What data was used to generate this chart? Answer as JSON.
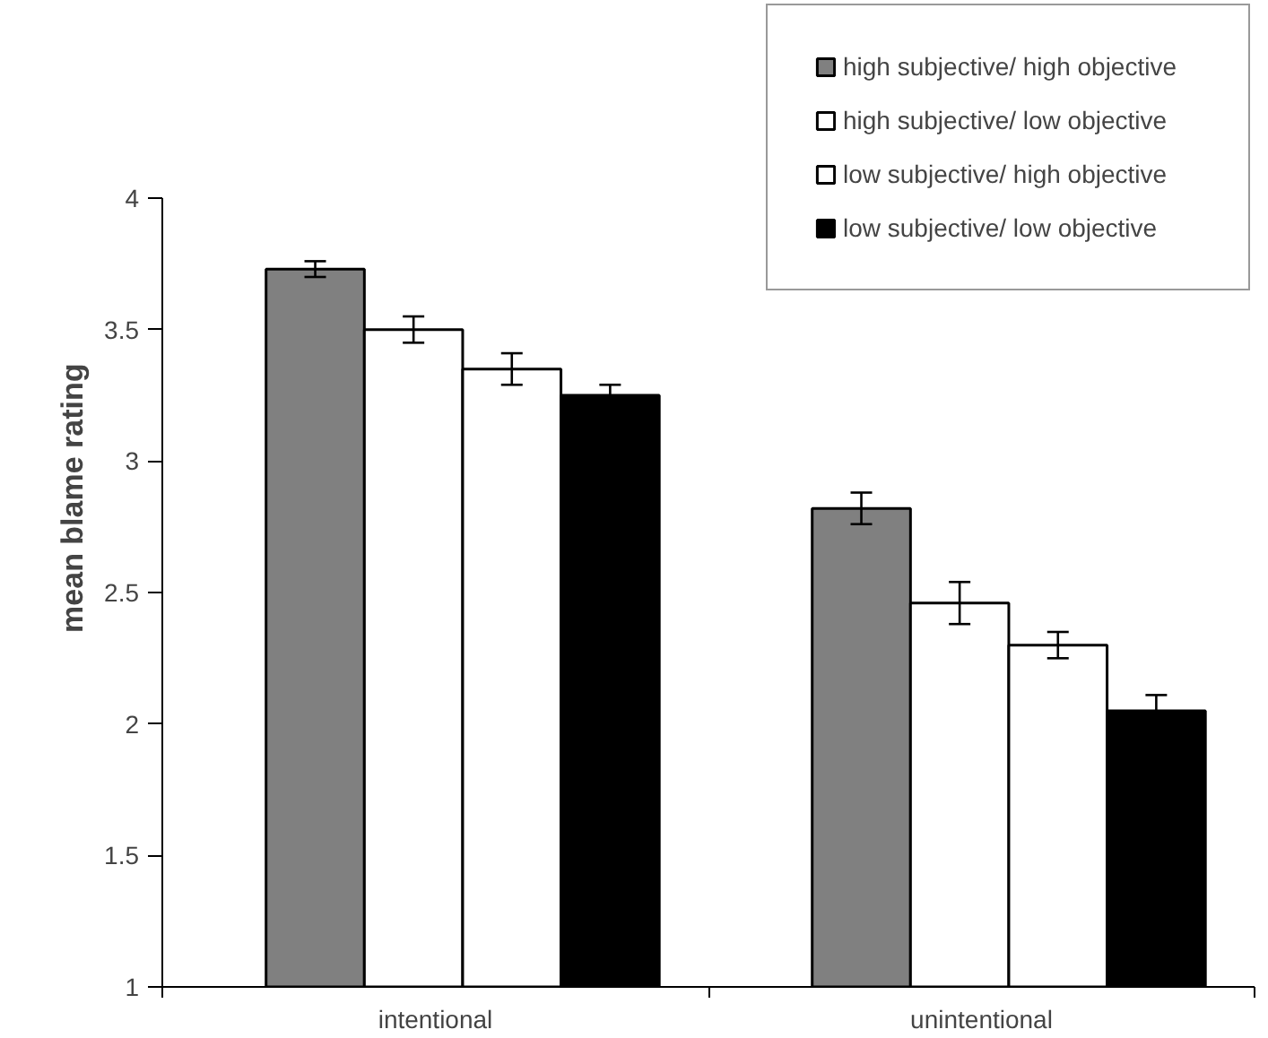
{
  "chart_data": {
    "type": "bar",
    "ylabel": "mean  blame rating",
    "categories": [
      "intentional",
      "unintentional"
    ],
    "series": [
      {
        "name": "high subjective/ high objective",
        "color": "#808080",
        "values": [
          3.73,
          2.82
        ],
        "errors": [
          0.03,
          0.06
        ]
      },
      {
        "name": "high subjective/ low objective",
        "color": "#ffffff",
        "values": [
          3.5,
          2.46
        ],
        "errors": [
          0.05,
          0.08
        ]
      },
      {
        "name": "low subjective/ high objective",
        "color": "#ffffff",
        "values": [
          3.35,
          2.3
        ],
        "errors": [
          0.06,
          0.05
        ]
      },
      {
        "name": "low subjective/ low objective",
        "color": "#000000",
        "values": [
          3.25,
          2.05
        ],
        "errors": [
          0.04,
          0.06
        ]
      }
    ],
    "ylim": [
      1,
      4
    ],
    "yticks": [
      1,
      1.5,
      2,
      2.5,
      3,
      3.5,
      4
    ],
    "grid": false,
    "legend": "top right"
  }
}
